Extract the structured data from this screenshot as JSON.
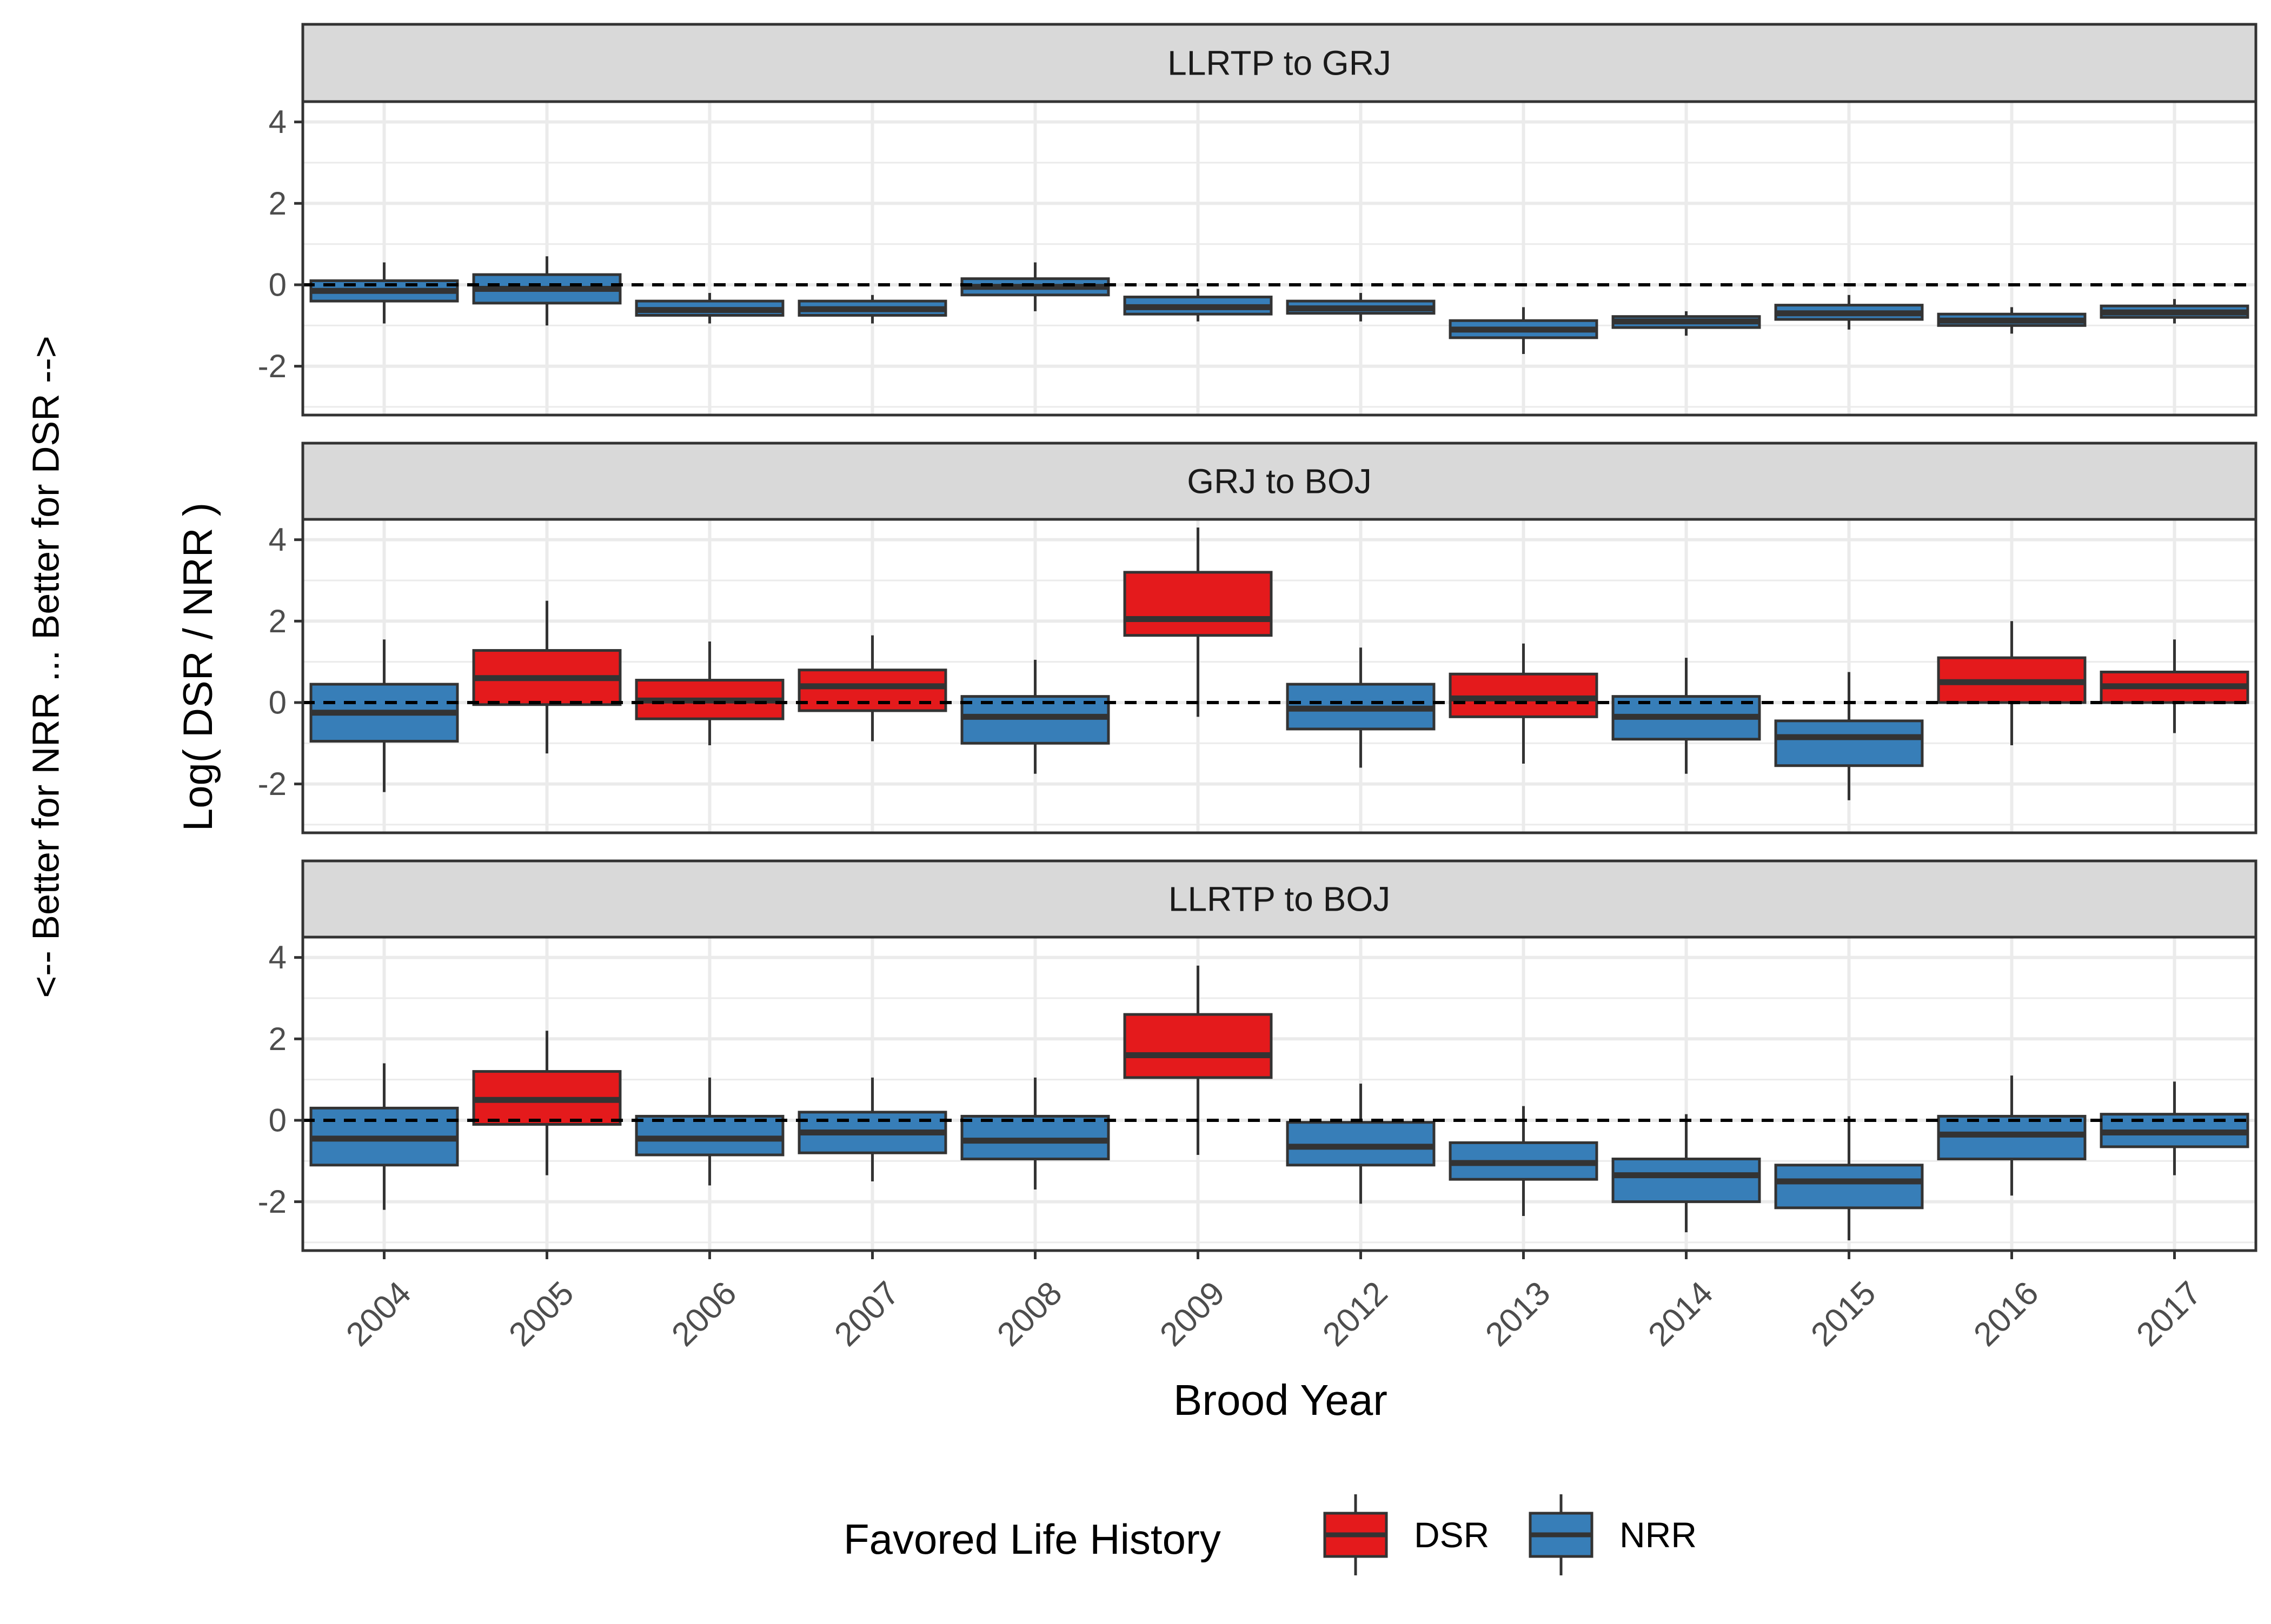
{
  "outer_label": "<--  Better for NRR ...  Better for DSR  -->",
  "colors": {
    "DSR": "#e41a1c",
    "NRR": "#377eb8",
    "strip_fill": "#d9d9d9",
    "grid": "#ebebeb",
    "axis_text": "#4d4d4d",
    "ink": "#333333"
  },
  "chart_data": {
    "type": "boxplot",
    "xlabel": "Brood Year",
    "ylabel": "Log( DSR / NRR )",
    "categories": [
      "2004",
      "2005",
      "2006",
      "2007",
      "2008",
      "2009",
      "2012",
      "2013",
      "2014",
      "2015",
      "2016",
      "2017"
    ],
    "ylim": [
      -3.2,
      4.5
    ],
    "yticks": [
      -2,
      0,
      2,
      4
    ],
    "reference_line": 0,
    "grid": true,
    "legend": {
      "title": "Favored Life History",
      "position": "bottom",
      "entries": [
        "DSR",
        "NRR"
      ]
    },
    "panels": [
      {
        "title": "LLRTP to GRJ",
        "boxes": [
          {
            "category": "2004",
            "group": "NRR",
            "min": -0.95,
            "q1": -0.4,
            "median": -0.15,
            "q3": 0.1,
            "max": 0.55
          },
          {
            "category": "2005",
            "group": "NRR",
            "min": -1.0,
            "q1": -0.45,
            "median": -0.1,
            "q3": 0.25,
            "max": 0.7
          },
          {
            "category": "2006",
            "group": "NRR",
            "min": -0.95,
            "q1": -0.75,
            "median": -0.62,
            "q3": -0.4,
            "max": -0.2
          },
          {
            "category": "2007",
            "group": "NRR",
            "min": -0.95,
            "q1": -0.75,
            "median": -0.6,
            "q3": -0.4,
            "max": -0.25
          },
          {
            "category": "2008",
            "group": "NRR",
            "min": -0.65,
            "q1": -0.25,
            "median": -0.05,
            "q3": 0.15,
            "max": 0.55
          },
          {
            "category": "2009",
            "group": "NRR",
            "min": -0.9,
            "q1": -0.72,
            "median": -0.55,
            "q3": -0.3,
            "max": -0.1
          },
          {
            "category": "2012",
            "group": "NRR",
            "min": -0.9,
            "q1": -0.7,
            "median": -0.58,
            "q3": -0.4,
            "max": -0.2
          },
          {
            "category": "2013",
            "group": "NRR",
            "min": -1.7,
            "q1": -1.3,
            "median": -1.1,
            "q3": -0.88,
            "max": -0.55
          },
          {
            "category": "2014",
            "group": "NRR",
            "min": -1.25,
            "q1": -1.05,
            "median": -0.9,
            "q3": -0.78,
            "max": -0.65
          },
          {
            "category": "2015",
            "group": "NRR",
            "min": -1.1,
            "q1": -0.85,
            "median": -0.7,
            "q3": -0.5,
            "max": -0.25
          },
          {
            "category": "2016",
            "group": "NRR",
            "min": -1.2,
            "q1": -1.0,
            "median": -0.88,
            "q3": -0.72,
            "max": -0.55
          },
          {
            "category": "2017",
            "group": "NRR",
            "min": -0.95,
            "q1": -0.8,
            "median": -0.68,
            "q3": -0.52,
            "max": -0.35
          }
        ]
      },
      {
        "title": "GRJ to BOJ",
        "boxes": [
          {
            "category": "2004",
            "group": "NRR",
            "min": -2.2,
            "q1": -0.95,
            "median": -0.25,
            "q3": 0.45,
            "max": 1.55
          },
          {
            "category": "2005",
            "group": "DSR",
            "min": -1.25,
            "q1": -0.05,
            "median": 0.6,
            "q3": 1.28,
            "max": 2.5
          },
          {
            "category": "2006",
            "group": "DSR",
            "min": -1.05,
            "q1": -0.4,
            "median": 0.05,
            "q3": 0.55,
            "max": 1.5
          },
          {
            "category": "2007",
            "group": "DSR",
            "min": -0.95,
            "q1": -0.2,
            "median": 0.4,
            "q3": 0.8,
            "max": 1.65
          },
          {
            "category": "2008",
            "group": "NRR",
            "min": -1.75,
            "q1": -1.0,
            "median": -0.35,
            "q3": 0.15,
            "max": 1.05
          },
          {
            "category": "2009",
            "group": "DSR",
            "min": -0.35,
            "q1": 1.65,
            "median": 2.05,
            "q3": 3.2,
            "max": 4.3
          },
          {
            "category": "2012",
            "group": "NRR",
            "min": -1.6,
            "q1": -0.65,
            "median": -0.15,
            "q3": 0.45,
            "max": 1.35
          },
          {
            "category": "2013",
            "group": "DSR",
            "min": -1.5,
            "q1": -0.35,
            "median": 0.1,
            "q3": 0.7,
            "max": 1.45
          },
          {
            "category": "2014",
            "group": "NRR",
            "min": -1.75,
            "q1": -0.9,
            "median": -0.35,
            "q3": 0.15,
            "max": 1.1
          },
          {
            "category": "2015",
            "group": "NRR",
            "min": -2.4,
            "q1": -1.55,
            "median": -0.85,
            "q3": -0.45,
            "max": 0.75
          },
          {
            "category": "2016",
            "group": "DSR",
            "min": -1.05,
            "q1": 0.0,
            "median": 0.5,
            "q3": 1.1,
            "max": 2.0
          },
          {
            "category": "2017",
            "group": "DSR",
            "min": -0.75,
            "q1": 0.0,
            "median": 0.4,
            "q3": 0.75,
            "max": 1.55
          }
        ]
      },
      {
        "title": "LLRTP to BOJ",
        "boxes": [
          {
            "category": "2004",
            "group": "NRR",
            "min": -2.2,
            "q1": -1.1,
            "median": -0.45,
            "q3": 0.3,
            "max": 1.4
          },
          {
            "category": "2005",
            "group": "DSR",
            "min": -1.35,
            "q1": -0.1,
            "median": 0.5,
            "q3": 1.2,
            "max": 2.2
          },
          {
            "category": "2006",
            "group": "NRR",
            "min": -1.6,
            "q1": -0.85,
            "median": -0.45,
            "q3": 0.1,
            "max": 1.05
          },
          {
            "category": "2007",
            "group": "NRR",
            "min": -1.5,
            "q1": -0.8,
            "median": -0.3,
            "q3": 0.2,
            "max": 1.05
          },
          {
            "category": "2008",
            "group": "NRR",
            "min": -1.7,
            "q1": -0.95,
            "median": -0.5,
            "q3": 0.1,
            "max": 1.05
          },
          {
            "category": "2009",
            "group": "DSR",
            "min": -0.85,
            "q1": 1.05,
            "median": 1.6,
            "q3": 2.6,
            "max": 3.8
          },
          {
            "category": "2012",
            "group": "NRR",
            "min": -2.05,
            "q1": -1.1,
            "median": -0.65,
            "q3": -0.05,
            "max": 0.9
          },
          {
            "category": "2013",
            "group": "NRR",
            "min": -2.35,
            "q1": -1.45,
            "median": -1.05,
            "q3": -0.55,
            "max": 0.35
          },
          {
            "category": "2014",
            "group": "NRR",
            "min": -2.75,
            "q1": -2.0,
            "median": -1.35,
            "q3": -0.95,
            "max": 0.15
          },
          {
            "category": "2015",
            "group": "NRR",
            "min": -2.95,
            "q1": -2.15,
            "median": -1.5,
            "q3": -1.1,
            "max": 0.1
          },
          {
            "category": "2016",
            "group": "NRR",
            "min": -1.85,
            "q1": -0.95,
            "median": -0.35,
            "q3": 0.1,
            "max": 1.1
          },
          {
            "category": "2017",
            "group": "NRR",
            "min": -1.35,
            "q1": -0.65,
            "median": -0.3,
            "q3": 0.15,
            "max": 0.95
          }
        ]
      }
    ]
  }
}
